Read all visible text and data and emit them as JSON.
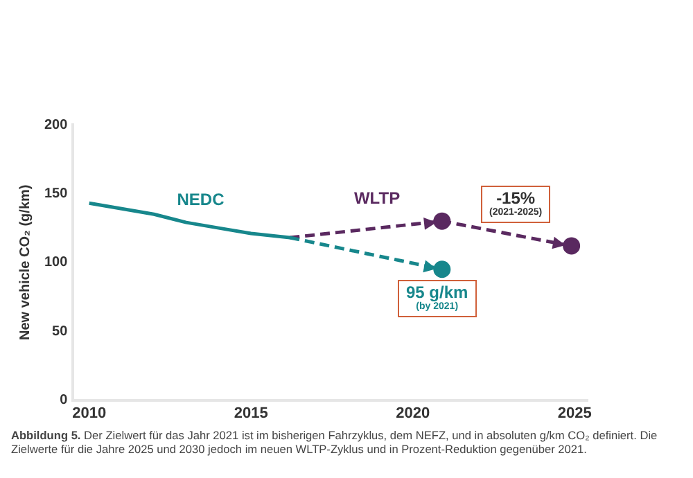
{
  "chart_data": {
    "type": "line",
    "ylabel": "New vehicle CO₂ (g/km)",
    "xlim": [
      2009.5,
      2025.4
    ],
    "xticks": [
      2010,
      2015,
      2020,
      2025
    ],
    "ylim": [
      0,
      200
    ],
    "yticks": [
      0,
      50,
      100,
      150,
      200
    ],
    "grid": false,
    "legend": false,
    "series": [
      {
        "name": "NEDC",
        "color": "#17878c",
        "line_style": "solid",
        "marker": "none",
        "x": [
          2010,
          2011,
          2012,
          2013,
          2014,
          2015,
          2016.2
        ],
        "values": [
          143,
          139,
          135,
          129,
          125,
          121,
          118
        ]
      },
      {
        "color": "#17878c",
        "line_style": "dashed",
        "marker": "circle",
        "x": [
          2016.2,
          2020.9
        ],
        "values": [
          118,
          95
        ]
      },
      {
        "name": "WLTP",
        "color": "#5a2960",
        "line_style": "dashed",
        "marker": "circle",
        "x": [
          2016.2,
          2020.9,
          2024.9
        ],
        "values": [
          118,
          130,
          112
        ]
      }
    ],
    "annotations": [
      "-15%",
      "(2021-2025)",
      "95 g/km",
      "(by 2021)",
      "Abbildung 5.",
      "Der Zielwert für das Jahr 2021 ist im bisherigen Fahrzyklus, dem NEFZ, und in absoluten g/km CO₂ definiert. Die Zielwerte für die Jahre 2025 und 2030 jedoch im neuen WLTP-Zyklus und in Prozent-Reduktion gegenüber 2021."
    ]
  }
}
